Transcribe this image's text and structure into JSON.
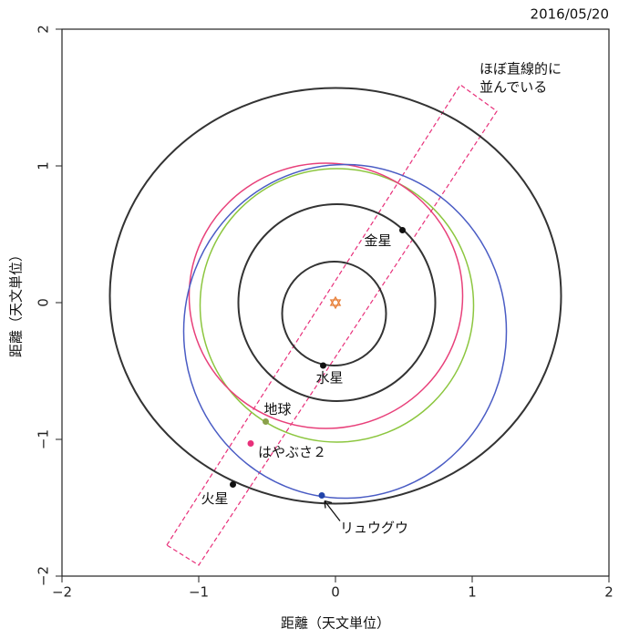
{
  "chart_data": {
    "type": "scatter",
    "date": "2016/05/20",
    "xlabel": "距離（天文単位）",
    "ylabel": "距離（天文単位）",
    "xlim": [
      -2,
      2
    ],
    "ylim": [
      -2,
      2
    ],
    "xticks": [
      {
        "value": -2,
        "label": "−2"
      },
      {
        "value": -1,
        "label": "−1"
      },
      0,
      1,
      2
    ],
    "yticks": [
      {
        "value": -2,
        "label": "−2"
      },
      {
        "value": -1,
        "label": "−1"
      },
      0,
      1,
      2
    ],
    "points": [
      {
        "name": "金星",
        "x": 0.49,
        "y": 0.53,
        "color": "#111111"
      },
      {
        "name": "水星",
        "x": -0.09,
        "y": -0.46,
        "color": "#111111"
      },
      {
        "name": "地球",
        "x": -0.51,
        "y": -0.87,
        "color": "#8aa04a"
      },
      {
        "name": "はやぶさ２",
        "x": -0.62,
        "y": -1.03,
        "color": "#e8307a"
      },
      {
        "name": "火星",
        "x": -0.75,
        "y": -1.33,
        "color": "#111111"
      },
      {
        "name": "リュウグウ",
        "x": -0.1,
        "y": -1.41,
        "color": "#2244aa"
      }
    ],
    "orbits": [
      {
        "color": "#333333",
        "cx": -0.01,
        "cy": -0.08,
        "rx": 0.38,
        "ry": 0.38
      },
      {
        "color": "#333333",
        "cx": 0.01,
        "cy": 0.0,
        "rx": 0.72,
        "ry": 0.72
      },
      {
        "color": "#333333",
        "cx": 0.0,
        "cy": 0.05,
        "rx": 1.65,
        "ry": 1.52
      },
      {
        "color": "#8cc63f",
        "cx": 0.01,
        "cy": -0.02,
        "rx": 1.0,
        "ry": 1.0
      },
      {
        "color": "#e8407a",
        "cx": -0.07,
        "cy": 0.05,
        "rx": 1.0,
        "ry": 0.97
      },
      {
        "color": "#4a5cc4",
        "cx": 0.07,
        "cy": -0.21,
        "rx": 1.18,
        "ry": 1.22
      }
    ],
    "annotation": [
      "ほぼ直線的に",
      "並んでいる"
    ]
  }
}
